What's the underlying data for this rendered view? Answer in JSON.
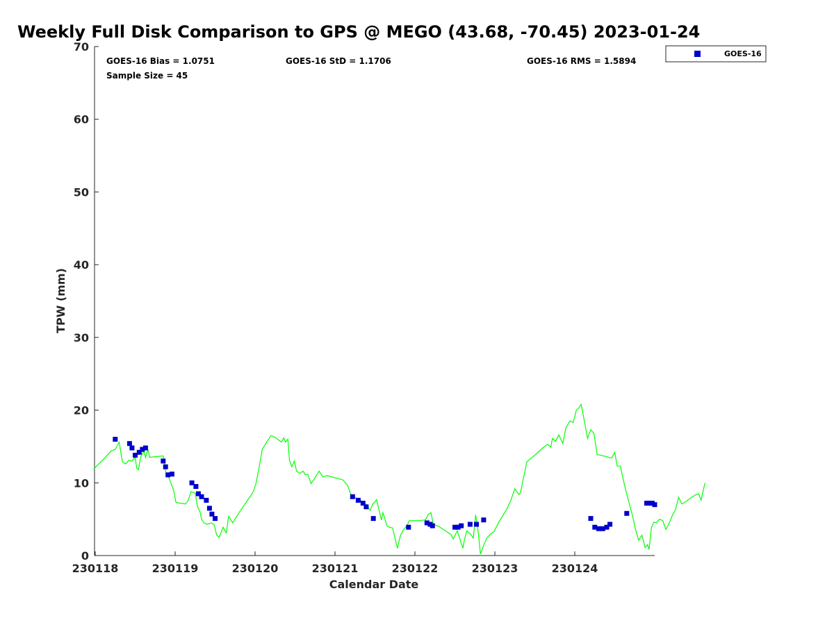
{
  "chart_data": {
    "type": "scatter",
    "title": "Weekly Full Disk Comparison to GPS @ MEGO (43.68, -70.45) 2023-01-24",
    "xlabel": "Calendar Date",
    "ylabel": "TPW (mm)",
    "x_ticks": [
      "230118",
      "230119",
      "230120",
      "230121",
      "230122",
      "230123",
      "230124"
    ],
    "x_range_days": [
      0,
      7
    ],
    "ylim": [
      0,
      70
    ],
    "y_ticks": [
      0,
      10,
      20,
      30,
      40,
      50,
      60,
      70
    ],
    "grid": false,
    "legend_position": "top-right (outside plot)",
    "stats": {
      "bias": "GOES-16 Bias = 1.0751",
      "std": "GOES-16 StD = 1.1706",
      "rms": "GOES-16 RMS = 1.5894",
      "sample": "Sample Size = 45"
    },
    "colors": {
      "gps_line": "#00ff00",
      "goes16": "#0000cc"
    },
    "series": [
      {
        "name": "GOES-16",
        "type": "scatter",
        "marker": "square",
        "color": "#0000cc",
        "points": [
          [
            0.25,
            16.0
          ],
          [
            0.43,
            15.4
          ],
          [
            0.46,
            14.8
          ],
          [
            0.5,
            13.8
          ],
          [
            0.55,
            14.2
          ],
          [
            0.59,
            14.6
          ],
          [
            0.63,
            14.8
          ],
          [
            0.85,
            13.0
          ],
          [
            0.88,
            12.2
          ],
          [
            0.91,
            11.1
          ],
          [
            0.96,
            11.2
          ],
          [
            1.21,
            10.0
          ],
          [
            1.26,
            9.5
          ],
          [
            1.29,
            8.5
          ],
          [
            1.33,
            8.1
          ],
          [
            1.39,
            7.6
          ],
          [
            1.43,
            6.5
          ],
          [
            1.46,
            5.7
          ],
          [
            1.5,
            5.1
          ],
          [
            3.22,
            8.1
          ],
          [
            3.29,
            7.6
          ],
          [
            3.35,
            7.2
          ],
          [
            3.39,
            6.7
          ],
          [
            3.48,
            5.1
          ],
          [
            3.92,
            3.9
          ],
          [
            4.15,
            4.5
          ],
          [
            4.19,
            4.3
          ],
          [
            4.22,
            4.1
          ],
          [
            4.5,
            3.9
          ],
          [
            4.54,
            3.9
          ],
          [
            4.58,
            4.1
          ],
          [
            4.69,
            4.3
          ],
          [
            4.77,
            4.3
          ],
          [
            4.86,
            4.9
          ],
          [
            6.2,
            5.1
          ],
          [
            6.25,
            3.9
          ],
          [
            6.3,
            3.7
          ],
          [
            6.35,
            3.7
          ],
          [
            6.4,
            3.9
          ],
          [
            6.44,
            4.3
          ],
          [
            6.65,
            5.8
          ],
          [
            6.9,
            7.2
          ],
          [
            6.94,
            7.2
          ],
          [
            6.97,
            7.2
          ],
          [
            7.0,
            7.0
          ]
        ]
      },
      {
        "name": "",
        "type": "line",
        "color": "#00ff00",
        "points": [
          [
            -0.02,
            11.9
          ],
          [
            0.1,
            13.2
          ],
          [
            0.2,
            14.4
          ],
          [
            0.25,
            14.6
          ],
          [
            0.3,
            15.6
          ],
          [
            0.34,
            12.9
          ],
          [
            0.38,
            12.6
          ],
          [
            0.42,
            13.1
          ],
          [
            0.46,
            13.0
          ],
          [
            0.5,
            13.5
          ],
          [
            0.52,
            12.0
          ],
          [
            0.54,
            11.8
          ],
          [
            0.57,
            13.6
          ],
          [
            0.61,
            14.4
          ],
          [
            0.63,
            13.5
          ],
          [
            0.66,
            14.6
          ],
          [
            0.68,
            13.5
          ],
          [
            0.75,
            13.6
          ],
          [
            0.85,
            13.7
          ],
          [
            0.88,
            11.6
          ],
          [
            0.93,
            10.5
          ],
          [
            0.98,
            9.0
          ],
          [
            1.01,
            7.3
          ],
          [
            1.13,
            7.1
          ],
          [
            1.16,
            7.5
          ],
          [
            1.2,
            8.8
          ],
          [
            1.25,
            8.6
          ],
          [
            1.28,
            6.7
          ],
          [
            1.31,
            6.1
          ],
          [
            1.33,
            5.0
          ],
          [
            1.36,
            4.5
          ],
          [
            1.4,
            4.3
          ],
          [
            1.45,
            4.5
          ],
          [
            1.49,
            4.2
          ],
          [
            1.52,
            2.8
          ],
          [
            1.55,
            2.5
          ],
          [
            1.6,
            3.9
          ],
          [
            1.64,
            3.1
          ],
          [
            1.67,
            5.4
          ],
          [
            1.72,
            4.5
          ],
          [
            1.8,
            5.9
          ],
          [
            1.9,
            7.5
          ],
          [
            1.97,
            8.6
          ],
          [
            2.01,
            9.8
          ],
          [
            2.05,
            12.1
          ],
          [
            2.09,
            14.6
          ],
          [
            2.15,
            15.7
          ],
          [
            2.2,
            16.5
          ],
          [
            2.26,
            16.2
          ],
          [
            2.33,
            15.6
          ],
          [
            2.36,
            16.2
          ],
          [
            2.38,
            15.6
          ],
          [
            2.41,
            16.0
          ],
          [
            2.43,
            13.1
          ],
          [
            2.46,
            12.2
          ],
          [
            2.49,
            13.0
          ],
          [
            2.52,
            11.6
          ],
          [
            2.56,
            11.3
          ],
          [
            2.6,
            11.6
          ],
          [
            2.63,
            11.1
          ],
          [
            2.66,
            11.2
          ],
          [
            2.7,
            9.9
          ],
          [
            2.74,
            10.5
          ],
          [
            2.8,
            11.6
          ],
          [
            2.85,
            10.8
          ],
          [
            2.9,
            11.0
          ],
          [
            3.0,
            10.7
          ],
          [
            3.1,
            10.4
          ],
          [
            3.16,
            9.6
          ],
          [
            3.2,
            8.3
          ],
          [
            3.35,
            7.4
          ],
          [
            3.4,
            6.9
          ],
          [
            3.44,
            6.2
          ],
          [
            3.47,
            7.0
          ],
          [
            3.52,
            7.7
          ],
          [
            3.55,
            6.3
          ],
          [
            3.58,
            4.9
          ],
          [
            3.6,
            5.9
          ],
          [
            3.62,
            5.2
          ],
          [
            3.65,
            4.1
          ],
          [
            3.68,
            3.9
          ],
          [
            3.72,
            3.8
          ],
          [
            3.75,
            2.4
          ],
          [
            3.78,
            1.0
          ],
          [
            3.82,
            2.8
          ],
          [
            3.86,
            3.6
          ],
          [
            3.9,
            4.1
          ],
          [
            3.93,
            4.8
          ],
          [
            4.05,
            4.8
          ],
          [
            4.13,
            4.9
          ],
          [
            4.17,
            5.7
          ],
          [
            4.2,
            5.9
          ],
          [
            4.23,
            4.3
          ],
          [
            4.3,
            4.0
          ],
          [
            4.38,
            3.4
          ],
          [
            4.45,
            2.9
          ],
          [
            4.48,
            2.3
          ],
          [
            4.53,
            3.4
          ],
          [
            4.56,
            2.4
          ],
          [
            4.6,
            1.0
          ],
          [
            4.62,
            2.2
          ],
          [
            4.65,
            3.4
          ],
          [
            4.7,
            2.9
          ],
          [
            4.73,
            2.4
          ],
          [
            4.76,
            5.6
          ],
          [
            4.79,
            3.4
          ],
          [
            4.82,
            0.2
          ],
          [
            4.86,
            1.4
          ],
          [
            4.9,
            2.4
          ],
          [
            4.94,
            2.9
          ],
          [
            4.99,
            3.3
          ],
          [
            5.05,
            4.6
          ],
          [
            5.1,
            5.5
          ],
          [
            5.15,
            6.4
          ],
          [
            5.2,
            7.6
          ],
          [
            5.25,
            9.2
          ],
          [
            5.3,
            8.4
          ],
          [
            5.32,
            8.6
          ],
          [
            5.37,
            11.3
          ],
          [
            5.4,
            12.9
          ],
          [
            5.5,
            13.8
          ],
          [
            5.6,
            14.8
          ],
          [
            5.66,
            15.3
          ],
          [
            5.7,
            14.9
          ],
          [
            5.72,
            16.1
          ],
          [
            5.76,
            15.7
          ],
          [
            5.8,
            16.6
          ],
          [
            5.85,
            15.4
          ],
          [
            5.89,
            17.6
          ],
          [
            5.94,
            18.5
          ],
          [
            5.98,
            18.3
          ],
          [
            6.02,
            20.0
          ],
          [
            6.05,
            20.3
          ],
          [
            6.08,
            20.8
          ],
          [
            6.12,
            18.5
          ],
          [
            6.16,
            16.1
          ],
          [
            6.2,
            17.3
          ],
          [
            6.24,
            16.8
          ],
          [
            6.28,
            13.9
          ],
          [
            6.4,
            13.6
          ],
          [
            6.46,
            13.4
          ],
          [
            6.5,
            14.2
          ],
          [
            6.53,
            12.3
          ],
          [
            6.57,
            12.3
          ],
          [
            6.62,
            9.8
          ],
          [
            6.68,
            7.2
          ],
          [
            6.72,
            5.6
          ],
          [
            6.76,
            3.6
          ],
          [
            6.8,
            2.1
          ],
          [
            6.84,
            2.8
          ],
          [
            6.88,
            1.1
          ],
          [
            6.91,
            1.5
          ],
          [
            6.93,
            0.8
          ],
          [
            6.96,
            3.9
          ],
          [
            6.99,
            4.6
          ],
          [
            7.02,
            4.5
          ],
          [
            7.06,
            5.0
          ],
          [
            7.1,
            4.8
          ],
          [
            7.14,
            3.6
          ],
          [
            7.18,
            4.4
          ],
          [
            7.22,
            5.5
          ],
          [
            7.26,
            6.3
          ],
          [
            7.3,
            8.0
          ],
          [
            7.34,
            7.1
          ],
          [
            7.4,
            7.5
          ],
          [
            7.46,
            8.0
          ],
          [
            7.52,
            8.4
          ],
          [
            7.55,
            8.5
          ],
          [
            7.58,
            7.6
          ],
          [
            7.6,
            8.6
          ],
          [
            7.63,
            10.0
          ]
        ]
      }
    ]
  }
}
